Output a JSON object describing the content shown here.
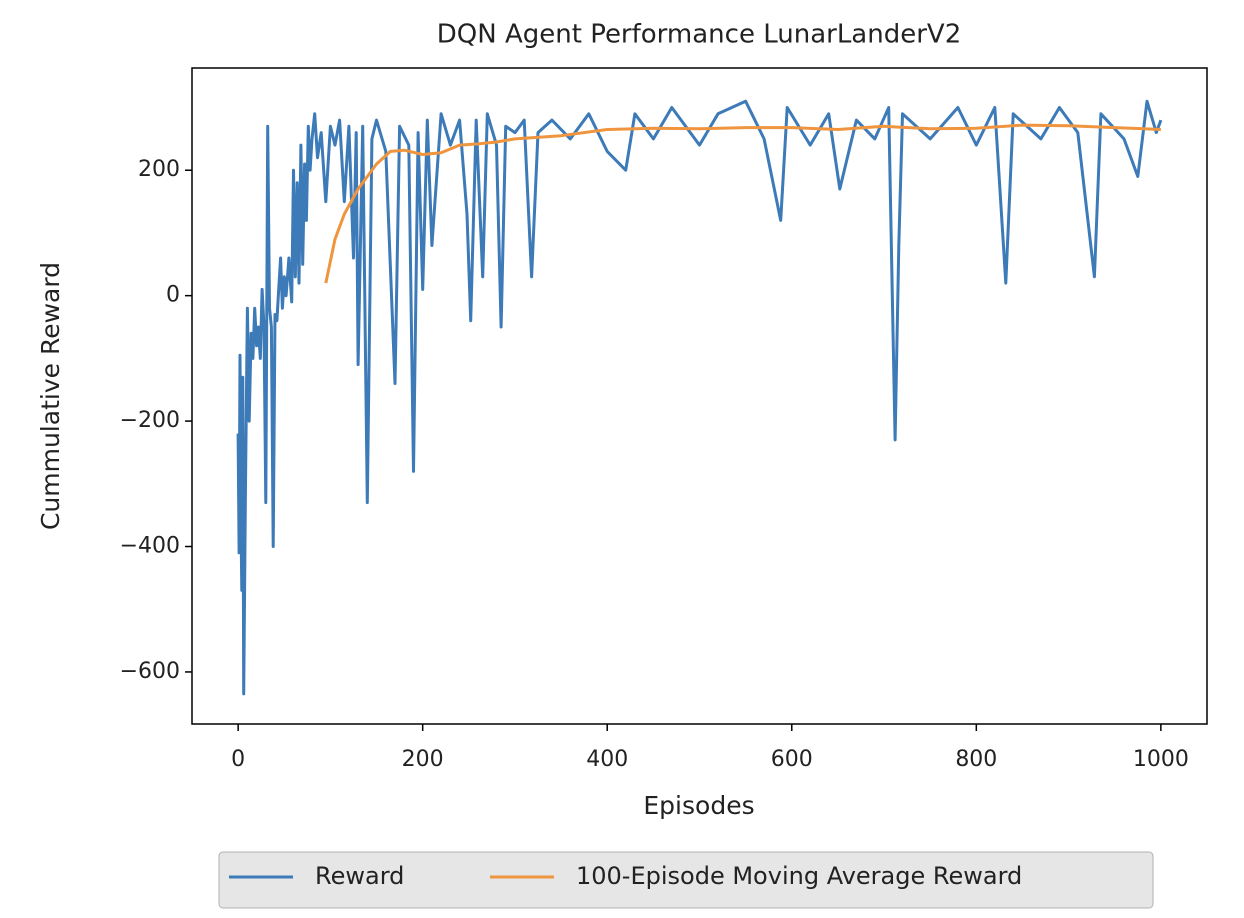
{
  "chart_data": {
    "type": "line",
    "title": "DQN Agent Performance LunarLanderV2",
    "xlabel": "Episodes",
    "ylabel": "Cummulative Reward",
    "xlim": [
      -50,
      1050
    ],
    "ylim": [
      -683,
      363
    ],
    "xticks": [
      0,
      200,
      400,
      600,
      800,
      1000
    ],
    "yticks": [
      {
        "value": -600,
        "label": "−600"
      },
      {
        "value": -400,
        "label": "−400"
      },
      {
        "value": -200,
        "label": "−200"
      },
      0,
      200
    ],
    "grid": false,
    "legend": "lower center",
    "series": [
      {
        "name": "Reward",
        "color": "#3d7ab8",
        "x": [
          0,
          1,
          2,
          3,
          4,
          5,
          6,
          8,
          10,
          12,
          14,
          16,
          18,
          20,
          22,
          24,
          26,
          28,
          30,
          32,
          34,
          36,
          38,
          40,
          42,
          44,
          46,
          48,
          50,
          52,
          55,
          58,
          60,
          62,
          64,
          66,
          68,
          70,
          72,
          74,
          76,
          78,
          80,
          83,
          86,
          90,
          95,
          100,
          105,
          110,
          115,
          120,
          125,
          128,
          130,
          135,
          140,
          145,
          150,
          160,
          170,
          175,
          185,
          190,
          195,
          200,
          205,
          210,
          220,
          230,
          240,
          248,
          252,
          258,
          265,
          270,
          280,
          285,
          290,
          300,
          310,
          318,
          325,
          340,
          360,
          380,
          400,
          420,
          430,
          450,
          470,
          500,
          520,
          550,
          570,
          588,
          595,
          620,
          640,
          652,
          670,
          690,
          705,
          712,
          716,
          720,
          750,
          780,
          800,
          820,
          832,
          840,
          870,
          890,
          910,
          928,
          935,
          960,
          975,
          985,
          995,
          1000
        ],
        "values": [
          -220,
          -410,
          -95,
          -350,
          -470,
          -130,
          -635,
          -300,
          -20,
          -200,
          -60,
          -100,
          -20,
          -80,
          -50,
          -100,
          10,
          -50,
          -330,
          270,
          -20,
          -50,
          -400,
          -30,
          -40,
          10,
          60,
          -20,
          30,
          0,
          60,
          -10,
          200,
          30,
          180,
          20,
          240,
          50,
          210,
          120,
          270,
          200,
          250,
          290,
          220,
          260,
          150,
          270,
          240,
          280,
          150,
          270,
          60,
          260,
          -110,
          270,
          -330,
          250,
          280,
          230,
          -140,
          270,
          240,
          -280,
          260,
          10,
          280,
          80,
          290,
          240,
          280,
          130,
          -40,
          280,
          30,
          290,
          240,
          -50,
          270,
          260,
          280,
          30,
          260,
          280,
          250,
          290,
          230,
          200,
          290,
          250,
          300,
          240,
          290,
          310,
          250,
          120,
          300,
          240,
          290,
          170,
          280,
          250,
          300,
          -230,
          80,
          290,
          250,
          300,
          240,
          300,
          20,
          290,
          250,
          300,
          260,
          30,
          290,
          250,
          190,
          310,
          260,
          280
        ]
      },
      {
        "name": "100-Episode Moving Average Reward",
        "color": "#f0953f",
        "x": [
          95,
          105,
          115,
          130,
          150,
          165,
          180,
          200,
          220,
          240,
          260,
          280,
          300,
          350,
          400,
          450,
          500,
          550,
          600,
          650,
          700,
          750,
          800,
          850,
          900,
          950,
          1000
        ],
        "values": [
          20,
          90,
          130,
          170,
          210,
          230,
          232,
          225,
          228,
          240,
          242,
          245,
          250,
          255,
          265,
          267,
          266,
          268,
          268,
          265,
          270,
          266,
          267,
          272,
          271,
          268,
          265
        ]
      }
    ]
  }
}
